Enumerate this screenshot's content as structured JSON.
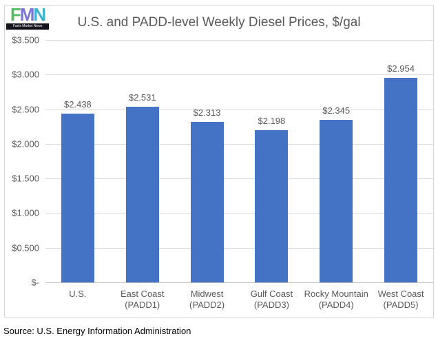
{
  "logo": {
    "letters": [
      {
        "char": "F",
        "color": "#56bd64"
      },
      {
        "char": "M",
        "color": "#7a74d8"
      },
      {
        "char": "N",
        "color": "#3ab3cc"
      }
    ],
    "caption": "Fuels Market News"
  },
  "source_note": "Source: U.S. Energy Information Administration",
  "chart_data": {
    "type": "bar",
    "title": "U.S. and PADD-level Weekly Diesel Prices, $/gal",
    "categories": [
      "U.S.",
      "East Coast\n(PADD1)",
      "Midwest (PADD2)",
      "Gulf Coast\n(PADD3)",
      "Rocky Mountain\n(PADD4)",
      "West Coast\n(PADD5)"
    ],
    "values": [
      2.438,
      2.531,
      2.313,
      2.198,
      2.345,
      2.954
    ],
    "data_labels": [
      "$2.438",
      "$2.531",
      "$2.313",
      "$2.198",
      "$2.345",
      "$2.954"
    ],
    "y_ticks": [
      {
        "value": 3.5,
        "label": "$3.500"
      },
      {
        "value": 3.0,
        "label": "$3.000"
      },
      {
        "value": 2.5,
        "label": "$2.500"
      },
      {
        "value": 2.0,
        "label": "$2.000"
      },
      {
        "value": 1.5,
        "label": "$1.500"
      },
      {
        "value": 1.0,
        "label": "$1.000"
      },
      {
        "value": 0.5,
        "label": "$0.500"
      },
      {
        "value": 0.0,
        "label": "$-"
      }
    ],
    "ylim": [
      0,
      3.5
    ],
    "xlabel": "",
    "ylabel": "",
    "grid": true,
    "legend": "none",
    "bar_color": "#4472c4",
    "gridline_color": "#d9d9d9",
    "axis_line_color": "#bfbfbf",
    "title_color": "#595959",
    "label_color": "#595959"
  }
}
